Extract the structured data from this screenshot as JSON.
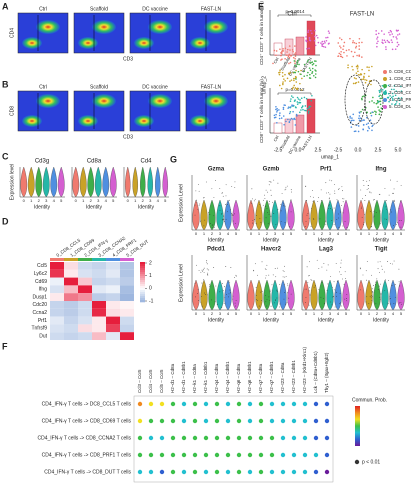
{
  "A": {
    "label": "A",
    "groups": [
      "Ctrl",
      "Scaffold",
      "DC vaccine",
      "FAST-LN"
    ],
    "x_axis": "CD3",
    "y_axis": "CD4",
    "bar_y_label": "CD4⁺ CD3⁺ T cells in tumor (%)",
    "p_value": "p=0.0014"
  },
  "B": {
    "label": "B",
    "groups": [
      "Ctrl",
      "Scaffold",
      "DC vaccine",
      "FAST-LN"
    ],
    "x_axis": "CD3",
    "y_axis": "CD8",
    "bar_y_label": "CD8⁺ CD3⁺ T cells in tumor (%)",
    "p_value": "p=0.0012"
  },
  "C": {
    "label": "C",
    "genes": [
      "Cd3g",
      "Cd8a",
      "Cd4"
    ],
    "y_axis": "Expression level",
    "x_axis": "Identity",
    "identities": [
      "0",
      "1",
      "2",
      "3",
      "4",
      "5"
    ]
  },
  "D": {
    "label": "D",
    "columns": [
      "0_CD8_CCL5",
      "1_CD8_CD69",
      "2_CD4_IFN-γ",
      "3_CD8_CCNA2",
      "4_CD8_PRF1",
      "5_CD8_DUT"
    ],
    "rows": [
      "Ccl5",
      "Ly6c2",
      "Cd69",
      "Ifng",
      "Dusp1",
      "Cdc20",
      "Ccna2",
      "Prf1",
      "Tnfrsf9",
      "Dut"
    ],
    "values": [
      [
        2.0,
        0.3,
        -0.5,
        -0.6,
        -0.4,
        -0.8
      ],
      [
        1.8,
        0.2,
        -0.4,
        -0.5,
        -0.3,
        -0.8
      ],
      [
        -0.2,
        2.0,
        0.5,
        -0.6,
        -0.5,
        -0.7
      ],
      [
        -0.4,
        0.6,
        2.0,
        -0.3,
        -0.2,
        -0.9
      ],
      [
        0.2,
        1.2,
        1.0,
        -0.7,
        -0.6,
        -1.0
      ],
      [
        -0.6,
        -0.7,
        -0.5,
        2.0,
        0.2,
        0.1
      ],
      [
        -0.6,
        -0.7,
        -0.5,
        1.9,
        0.3,
        0.2
      ],
      [
        -0.3,
        -0.6,
        -0.4,
        0.2,
        2.0,
        -0.5
      ],
      [
        -0.4,
        -0.5,
        0.3,
        0.2,
        1.7,
        -0.6
      ],
      [
        -0.5,
        -0.6,
        -0.5,
        0.6,
        -0.3,
        2.0
      ]
    ],
    "scale_ticks": [
      2,
      1,
      0,
      -1
    ]
  },
  "E": {
    "label": "E",
    "panels": [
      "Ctrl",
      "FAST-LN"
    ],
    "x_axis": "umap_1",
    "y_axis": "umap_2",
    "x_ticks": [
      "-2.5",
      "0.0",
      "2.5",
      "-2.5",
      "0.0",
      "2.5",
      "5.0"
    ],
    "clusters": [
      "0. CD8_CCL5",
      "1. CD8_CD69",
      "2. CD4_IFN-γ",
      "3. CD8_CCNA2",
      "4. CD8_PRF1",
      "5. CD8_DUT"
    ],
    "colors": [
      "#f07a6e",
      "#c9a227",
      "#3fae49",
      "#25b7a8",
      "#4f8fe0",
      "#d45fd0"
    ]
  },
  "G": {
    "label": "G",
    "genes": [
      "Gzma",
      "Gzmb",
      "Prf1",
      "Ifng",
      "Pdcd1",
      "Havcr2",
      "Lag3",
      "Tigit"
    ],
    "y_axis": "Expression Level",
    "x_axis": "Identity",
    "identities": [
      "0",
      "1",
      "2",
      "3",
      "4",
      "5"
    ]
  },
  "F": {
    "label": "F",
    "columns": [
      "Ccl3 – Ccr5",
      "Ccl4 – Ccr5",
      "Ccl5 – Ccr5",
      "H2−d1 – Cd8a",
      "H2−d1 – Cd8b1",
      "H2−k1 – Cd8a",
      "H2−k1 – Cd8b1",
      "H2−q4 – Cd8a",
      "H2−q4 – Cd8b1",
      "H2−q6 – Cd8a",
      "H2−q6 – Cd8b1",
      "H2−q7 – Cd8a",
      "H2−q7 – Cd8b1",
      "H2−t23 – Cd8a",
      "H2−t23 – Cd8b1",
      "H2−t23 – (Klrd1+Klrc1)",
      "Lck – (Cd8a+Cd8b1)",
      "Thy1 – (Itgax+Itgb2)"
    ],
    "rows": [
      "CD4_IFN-γ T cells -> DC8_CCL5 T cells",
      "CD4_IFN-γ T cells -> CD8_CD69 T cells",
      "CD4_IFN-γ T cells -> CD8_CCNA2 T cells",
      "CD4_IFN-γ T cells -> CD8_PRF1 T cells",
      "CD4_IFN-γ T cells -> CD8_DUT T cells"
    ],
    "prob": [
      [
        0.75,
        0.7,
        0.6,
        0.45,
        0.4,
        0.45,
        0.4,
        0.45,
        0.4,
        0.45,
        0.4,
        0.45,
        0.4,
        0.35,
        0.3,
        0.3,
        0.2,
        0.1
      ],
      [
        0.6,
        0.55,
        0.5,
        0.45,
        0.4,
        0.45,
        0.4,
        0.45,
        0.4,
        0.45,
        0.4,
        0.45,
        0.4,
        0.35,
        0.3,
        0.3,
        0.2,
        0.1
      ],
      [
        0.45,
        0.4,
        0.35,
        0.5,
        0.45,
        0.5,
        0.45,
        0.5,
        0.45,
        0.5,
        0.45,
        0.5,
        0.45,
        0.4,
        0.35,
        0.3,
        0.2,
        0.15
      ],
      [
        0.55,
        0.5,
        0.45,
        0.5,
        0.45,
        0.5,
        0.45,
        0.5,
        0.45,
        0.5,
        0.45,
        0.5,
        0.45,
        0.4,
        0.35,
        0.3,
        0.25,
        0.1
      ],
      [
        0.3,
        0.25,
        0.2,
        0.45,
        0.4,
        0.45,
        0.4,
        0.45,
        0.4,
        0.45,
        0.4,
        0.45,
        0.4,
        0.35,
        0.3,
        0.25,
        0.15,
        0.05
      ]
    ],
    "legend_title": "Commun. Prob.",
    "significance": "p < 0.01"
  }
}
